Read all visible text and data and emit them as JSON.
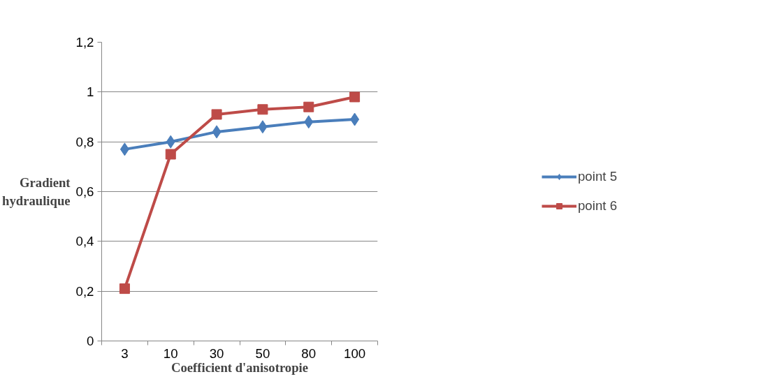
{
  "chart_data": {
    "type": "line",
    "xlabel": "Coefficient d'anisotropie",
    "ylabel": "Gradient\nhydraulique",
    "categories": [
      "3",
      "10",
      "30",
      "50",
      "80",
      "100"
    ],
    "series": [
      {
        "name": "point 5",
        "color": "#4a7ebb",
        "marker": "diamond",
        "values": [
          0.77,
          0.8,
          0.84,
          0.86,
          0.88,
          0.89
        ]
      },
      {
        "name": "point 6",
        "color": "#be4b48",
        "marker": "square",
        "values": [
          0.21,
          0.75,
          0.91,
          0.93,
          0.94,
          0.98
        ]
      }
    ],
    "ylim": [
      0,
      1.2
    ],
    "yticks": [
      {
        "value": 0,
        "label": "0"
      },
      {
        "value": 0.2,
        "label": "0,2"
      },
      {
        "value": 0.4,
        "label": "0,4"
      },
      {
        "value": 0.6,
        "label": "0,6"
      },
      {
        "value": 0.8,
        "label": "0,8"
      },
      {
        "value": 1,
        "label": "1"
      },
      {
        "value": 1.2,
        "label": "1,2"
      }
    ],
    "grid": "y",
    "legend": "right",
    "line_style": "solid"
  }
}
